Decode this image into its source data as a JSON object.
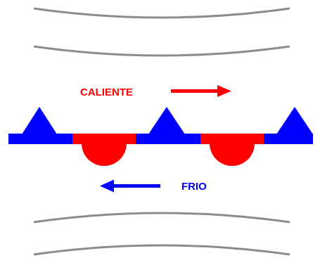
{
  "labels": {
    "warm": "CALIENTE",
    "cold": "FRIO"
  },
  "colors": {
    "warm": "#ff0000",
    "cold": "#0000ff",
    "isobar": "#8c8c8c",
    "background": "#ffffff"
  },
  "symbols": {
    "warm_arrow": "arrow-right-icon",
    "cold_arrow": "arrow-left-icon",
    "cold_front_marker": "triangle-icon",
    "warm_front_marker": "semicircle-icon"
  }
}
